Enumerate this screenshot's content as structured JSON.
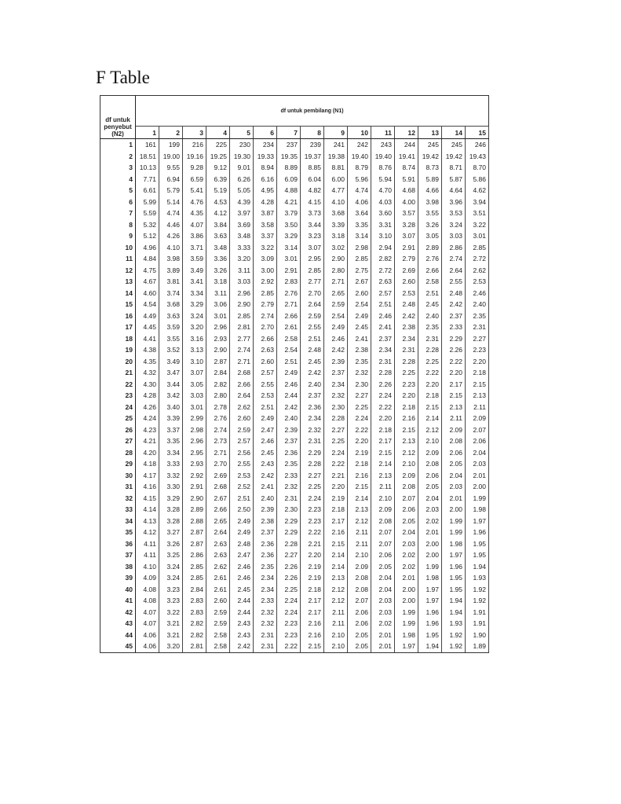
{
  "title": "F Table",
  "table": {
    "row_header": "df untuk penyebut (N2)",
    "column_group_header": "df untuk pembilang (N1)",
    "columns": [
      "1",
      "2",
      "3",
      "4",
      "5",
      "6",
      "7",
      "8",
      "9",
      "10",
      "11",
      "12",
      "13",
      "14",
      "15"
    ],
    "rows": [
      {
        "df": "1",
        "values": [
          "161",
          "199",
          "216",
          "225",
          "230",
          "234",
          "237",
          "239",
          "241",
          "242",
          "243",
          "244",
          "245",
          "245",
          "246"
        ]
      },
      {
        "df": "2",
        "values": [
          "18.51",
          "19.00",
          "19.16",
          "19.25",
          "19.30",
          "19.33",
          "19.35",
          "19.37",
          "19.38",
          "19.40",
          "19.40",
          "19.41",
          "19.42",
          "19.42",
          "19.43"
        ]
      },
      {
        "df": "3",
        "values": [
          "10.13",
          "9.55",
          "9.28",
          "9.12",
          "9.01",
          "8.94",
          "8.89",
          "8.85",
          "8.81",
          "8.79",
          "8.76",
          "8.74",
          "8.73",
          "8.71",
          "8.70"
        ]
      },
      {
        "df": "4",
        "values": [
          "7.71",
          "6.94",
          "6.59",
          "6.39",
          "6.26",
          "6.16",
          "6.09",
          "6.04",
          "6.00",
          "5.96",
          "5.94",
          "5.91",
          "5.89",
          "5.87",
          "5.86"
        ]
      },
      {
        "df": "5",
        "values": [
          "6.61",
          "5.79",
          "5.41",
          "5.19",
          "5.05",
          "4.95",
          "4.88",
          "4.82",
          "4.77",
          "4.74",
          "4.70",
          "4.68",
          "4.66",
          "4.64",
          "4.62"
        ]
      },
      {
        "df": "6",
        "values": [
          "5.99",
          "5.14",
          "4.76",
          "4.53",
          "4.39",
          "4.28",
          "4.21",
          "4.15",
          "4.10",
          "4.06",
          "4.03",
          "4.00",
          "3.98",
          "3.96",
          "3.94"
        ]
      },
      {
        "df": "7",
        "values": [
          "5.59",
          "4.74",
          "4.35",
          "4.12",
          "3.97",
          "3.87",
          "3.79",
          "3.73",
          "3.68",
          "3.64",
          "3.60",
          "3.57",
          "3.55",
          "3.53",
          "3.51"
        ]
      },
      {
        "df": "8",
        "values": [
          "5.32",
          "4.46",
          "4.07",
          "3.84",
          "3.69",
          "3.58",
          "3.50",
          "3.44",
          "3.39",
          "3.35",
          "3.31",
          "3.28",
          "3.26",
          "3.24",
          "3.22"
        ]
      },
      {
        "df": "9",
        "values": [
          "5.12",
          "4.26",
          "3.86",
          "3.63",
          "3.48",
          "3.37",
          "3.29",
          "3.23",
          "3.18",
          "3.14",
          "3.10",
          "3.07",
          "3.05",
          "3.03",
          "3.01"
        ]
      },
      {
        "df": "10",
        "values": [
          "4.96",
          "4.10",
          "3.71",
          "3.48",
          "3.33",
          "3.22",
          "3.14",
          "3.07",
          "3.02",
          "2.98",
          "2.94",
          "2.91",
          "2.89",
          "2.86",
          "2.85"
        ]
      },
      {
        "df": "11",
        "values": [
          "4.84",
          "3.98",
          "3.59",
          "3.36",
          "3.20",
          "3.09",
          "3.01",
          "2.95",
          "2.90",
          "2.85",
          "2.82",
          "2.79",
          "2.76",
          "2.74",
          "2.72"
        ]
      },
      {
        "df": "12",
        "values": [
          "4.75",
          "3.89",
          "3.49",
          "3.26",
          "3.11",
          "3.00",
          "2.91",
          "2.85",
          "2.80",
          "2.75",
          "2.72",
          "2.69",
          "2.66",
          "2.64",
          "2.62"
        ]
      },
      {
        "df": "13",
        "values": [
          "4.67",
          "3.81",
          "3.41",
          "3.18",
          "3.03",
          "2.92",
          "2.83",
          "2.77",
          "2.71",
          "2.67",
          "2.63",
          "2.60",
          "2.58",
          "2.55",
          "2.53"
        ]
      },
      {
        "df": "14",
        "values": [
          "4.60",
          "3.74",
          "3.34",
          "3.11",
          "2.96",
          "2.85",
          "2.76",
          "2.70",
          "2.65",
          "2.60",
          "2.57",
          "2.53",
          "2.51",
          "2.48",
          "2.46"
        ]
      },
      {
        "df": "15",
        "values": [
          "4.54",
          "3.68",
          "3.29",
          "3.06",
          "2.90",
          "2.79",
          "2.71",
          "2.64",
          "2.59",
          "2.54",
          "2.51",
          "2.48",
          "2.45",
          "2.42",
          "2.40"
        ]
      },
      {
        "df": "16",
        "values": [
          "4.49",
          "3.63",
          "3.24",
          "3.01",
          "2.85",
          "2.74",
          "2.66",
          "2.59",
          "2.54",
          "2.49",
          "2.46",
          "2.42",
          "2.40",
          "2.37",
          "2.35"
        ]
      },
      {
        "df": "17",
        "values": [
          "4.45",
          "3.59",
          "3.20",
          "2.96",
          "2.81",
          "2.70",
          "2.61",
          "2.55",
          "2.49",
          "2.45",
          "2.41",
          "2.38",
          "2.35",
          "2.33",
          "2.31"
        ]
      },
      {
        "df": "18",
        "values": [
          "4.41",
          "3.55",
          "3.16",
          "2.93",
          "2.77",
          "2.66",
          "2.58",
          "2.51",
          "2.46",
          "2.41",
          "2.37",
          "2.34",
          "2.31",
          "2.29",
          "2.27"
        ]
      },
      {
        "df": "19",
        "values": [
          "4.38",
          "3.52",
          "3.13",
          "2.90",
          "2.74",
          "2.63",
          "2.54",
          "2.48",
          "2.42",
          "2.38",
          "2.34",
          "2.31",
          "2.28",
          "2.26",
          "2.23"
        ]
      },
      {
        "df": "20",
        "values": [
          "4.35",
          "3.49",
          "3.10",
          "2.87",
          "2.71",
          "2.60",
          "2.51",
          "2.45",
          "2.39",
          "2.35",
          "2.31",
          "2.28",
          "2.25",
          "2.22",
          "2.20"
        ]
      },
      {
        "df": "21",
        "values": [
          "4.32",
          "3.47",
          "3.07",
          "2.84",
          "2.68",
          "2.57",
          "2.49",
          "2.42",
          "2.37",
          "2.32",
          "2.28",
          "2.25",
          "2.22",
          "2.20",
          "2.18"
        ]
      },
      {
        "df": "22",
        "values": [
          "4.30",
          "3.44",
          "3.05",
          "2.82",
          "2.66",
          "2.55",
          "2.46",
          "2.40",
          "2.34",
          "2.30",
          "2.26",
          "2.23",
          "2.20",
          "2.17",
          "2.15"
        ]
      },
      {
        "df": "23",
        "values": [
          "4.28",
          "3.42",
          "3.03",
          "2.80",
          "2.64",
          "2.53",
          "2.44",
          "2.37",
          "2.32",
          "2.27",
          "2.24",
          "2.20",
          "2.18",
          "2.15",
          "2.13"
        ]
      },
      {
        "df": "24",
        "values": [
          "4.26",
          "3.40",
          "3.01",
          "2.78",
          "2.62",
          "2.51",
          "2.42",
          "2.36",
          "2.30",
          "2.25",
          "2.22",
          "2.18",
          "2.15",
          "2.13",
          "2.11"
        ]
      },
      {
        "df": "25",
        "values": [
          "4.24",
          "3.39",
          "2.99",
          "2.76",
          "2.60",
          "2.49",
          "2.40",
          "2.34",
          "2.28",
          "2.24",
          "2.20",
          "2.16",
          "2.14",
          "2.11",
          "2.09"
        ]
      },
      {
        "df": "26",
        "values": [
          "4.23",
          "3.37",
          "2.98",
          "2.74",
          "2.59",
          "2.47",
          "2.39",
          "2.32",
          "2.27",
          "2.22",
          "2.18",
          "2.15",
          "2.12",
          "2.09",
          "2.07"
        ]
      },
      {
        "df": "27",
        "values": [
          "4.21",
          "3.35",
          "2.96",
          "2.73",
          "2.57",
          "2.46",
          "2.37",
          "2.31",
          "2.25",
          "2.20",
          "2.17",
          "2.13",
          "2.10",
          "2.08",
          "2.06"
        ]
      },
      {
        "df": "28",
        "values": [
          "4.20",
          "3.34",
          "2.95",
          "2.71",
          "2.56",
          "2.45",
          "2.36",
          "2.29",
          "2.24",
          "2.19",
          "2.15",
          "2.12",
          "2.09",
          "2.06",
          "2.04"
        ]
      },
      {
        "df": "29",
        "values": [
          "4.18",
          "3.33",
          "2.93",
          "2.70",
          "2.55",
          "2.43",
          "2.35",
          "2.28",
          "2.22",
          "2.18",
          "2.14",
          "2.10",
          "2.08",
          "2.05",
          "2.03"
        ]
      },
      {
        "df": "30",
        "values": [
          "4.17",
          "3.32",
          "2.92",
          "2.69",
          "2.53",
          "2.42",
          "2.33",
          "2.27",
          "2.21",
          "2.16",
          "2.13",
          "2.09",
          "2.06",
          "2.04",
          "2.01"
        ]
      },
      {
        "df": "31",
        "values": [
          "4.16",
          "3.30",
          "2.91",
          "2.68",
          "2.52",
          "2.41",
          "2.32",
          "2.25",
          "2.20",
          "2.15",
          "2.11",
          "2.08",
          "2.05",
          "2.03",
          "2.00"
        ]
      },
      {
        "df": "32",
        "values": [
          "4.15",
          "3.29",
          "2.90",
          "2.67",
          "2.51",
          "2.40",
          "2.31",
          "2.24",
          "2.19",
          "2.14",
          "2.10",
          "2.07",
          "2.04",
          "2.01",
          "1.99"
        ]
      },
      {
        "df": "33",
        "values": [
          "4.14",
          "3.28",
          "2.89",
          "2.66",
          "2.50",
          "2.39",
          "2.30",
          "2.23",
          "2.18",
          "2.13",
          "2.09",
          "2.06",
          "2.03",
          "2.00",
          "1.98"
        ]
      },
      {
        "df": "34",
        "values": [
          "4.13",
          "3.28",
          "2.88",
          "2.65",
          "2.49",
          "2.38",
          "2.29",
          "2.23",
          "2.17",
          "2.12",
          "2.08",
          "2.05",
          "2.02",
          "1.99",
          "1.97"
        ]
      },
      {
        "df": "35",
        "values": [
          "4.12",
          "3.27",
          "2.87",
          "2.64",
          "2.49",
          "2.37",
          "2.29",
          "2.22",
          "2.16",
          "2.11",
          "2.07",
          "2.04",
          "2.01",
          "1.99",
          "1.96"
        ]
      },
      {
        "df": "36",
        "values": [
          "4.11",
          "3.26",
          "2.87",
          "2.63",
          "2.48",
          "2.36",
          "2.28",
          "2.21",
          "2.15",
          "2.11",
          "2.07",
          "2.03",
          "2.00",
          "1.98",
          "1.95"
        ]
      },
      {
        "df": "37",
        "values": [
          "4.11",
          "3.25",
          "2.86",
          "2.63",
          "2.47",
          "2.36",
          "2.27",
          "2.20",
          "2.14",
          "2.10",
          "2.06",
          "2.02",
          "2.00",
          "1.97",
          "1.95"
        ]
      },
      {
        "df": "38",
        "values": [
          "4.10",
          "3.24",
          "2.85",
          "2.62",
          "2.46",
          "2.35",
          "2.26",
          "2.19",
          "2.14",
          "2.09",
          "2.05",
          "2.02",
          "1.99",
          "1.96",
          "1.94"
        ]
      },
      {
        "df": "39",
        "values": [
          "4.09",
          "3.24",
          "2.85",
          "2.61",
          "2.46",
          "2.34",
          "2.26",
          "2.19",
          "2.13",
          "2.08",
          "2.04",
          "2.01",
          "1.98",
          "1.95",
          "1.93"
        ]
      },
      {
        "df": "40",
        "values": [
          "4.08",
          "3.23",
          "2.84",
          "2.61",
          "2.45",
          "2.34",
          "2.25",
          "2.18",
          "2.12",
          "2.08",
          "2.04",
          "2.00",
          "1.97",
          "1.95",
          "1.92"
        ]
      },
      {
        "df": "41",
        "values": [
          "4.08",
          "3.23",
          "2.83",
          "2.60",
          "2.44",
          "2.33",
          "2.24",
          "2.17",
          "2.12",
          "2.07",
          "2.03",
          "2.00",
          "1.97",
          "1.94",
          "1.92"
        ]
      },
      {
        "df": "42",
        "values": [
          "4.07",
          "3.22",
          "2.83",
          "2.59",
          "2.44",
          "2.32",
          "2.24",
          "2.17",
          "2.11",
          "2.06",
          "2.03",
          "1.99",
          "1.96",
          "1.94",
          "1.91"
        ]
      },
      {
        "df": "43",
        "values": [
          "4.07",
          "3.21",
          "2.82",
          "2.59",
          "2.43",
          "2.32",
          "2.23",
          "2.16",
          "2.11",
          "2.06",
          "2.02",
          "1.99",
          "1.96",
          "1.93",
          "1.91"
        ]
      },
      {
        "df": "44",
        "values": [
          "4.06",
          "3.21",
          "2.82",
          "2.58",
          "2.43",
          "2.31",
          "2.23",
          "2.16",
          "2.10",
          "2.05",
          "2.01",
          "1.98",
          "1.95",
          "1.92",
          "1.90"
        ]
      },
      {
        "df": "45",
        "values": [
          "4.06",
          "3.20",
          "2.81",
          "2.58",
          "2.42",
          "2.31",
          "2.22",
          "2.15",
          "2.10",
          "2.05",
          "2.01",
          "1.97",
          "1.94",
          "1.92",
          "1.89"
        ]
      }
    ]
  }
}
